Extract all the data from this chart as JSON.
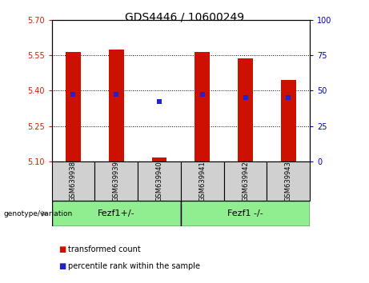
{
  "title": "GDS4446 / 10600249",
  "samples": [
    "GSM639938",
    "GSM639939",
    "GSM639940",
    "GSM639941",
    "GSM639942",
    "GSM639943"
  ],
  "red_bar_bottom": 5.1,
  "red_bar_tops": [
    5.565,
    5.575,
    5.115,
    5.565,
    5.535,
    5.445
  ],
  "blue_marker_y": [
    5.385,
    5.385,
    5.355,
    5.385,
    5.37,
    5.37
  ],
  "ylim": [
    5.1,
    5.7
  ],
  "yticks_left": [
    5.1,
    5.25,
    5.4,
    5.55,
    5.7
  ],
  "yticks_right": [
    0,
    25,
    50,
    75,
    100
  ],
  "left_color": "#cc2200",
  "right_color": "#0000bb",
  "bar_color": "#cc1100",
  "blue_color": "#2222cc",
  "group1_label": "Fezf1+/-",
  "group2_label": "Fezf1 -/-",
  "group_bg": "#90ee90",
  "sample_box_bg": "#d0d0d0",
  "genotype_label": "genotype/variation",
  "legend_red_label": "transformed count",
  "legend_blue_label": "percentile rank within the sample",
  "bar_width": 0.35,
  "title_fontsize": 10,
  "tick_fontsize": 7,
  "sample_fontsize": 6,
  "geno_fontsize": 8,
  "legend_fontsize": 7
}
